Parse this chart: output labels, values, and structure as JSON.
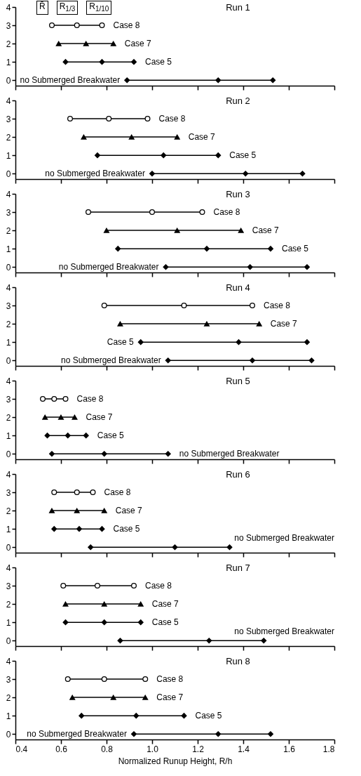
{
  "chart_data": [
    {
      "type": "line",
      "title": "Run 1",
      "annotations": [
        "R̄",
        "R$_{1/3}$",
        "R$_{1/10}$"
      ],
      "xlim": [
        0.4,
        1.8
      ],
      "xticks": [
        0.4,
        0.6,
        0.8,
        1.0,
        1.2,
        1.4,
        1.6,
        1.8
      ],
      "ylim": [
        -0.3,
        4
      ],
      "yticks": [
        0,
        1,
        2,
        3,
        4
      ],
      "tick_labels": "y",
      "series": [
        {
          "name": "Case 8",
          "marker": "circle",
          "x": [
            0.56,
            0.67,
            0.78
          ],
          "values": [
            3,
            3,
            3
          ]
        },
        {
          "name": "Case 7",
          "marker": "triangle",
          "x": [
            0.59,
            0.71,
            0.83
          ],
          "values": [
            2,
            2,
            2
          ]
        },
        {
          "name": "Case 5",
          "marker": "diamond",
          "x": [
            0.62,
            0.78,
            0.92
          ],
          "values": [
            1,
            1,
            1
          ]
        },
        {
          "name": "no Submerged Breakwater",
          "marker": "diamond",
          "x": [
            0.89,
            1.29,
            1.53
          ],
          "values": [
            0,
            0,
            0
          ]
        }
      ]
    },
    {
      "type": "line",
      "title": "Run 2",
      "xlim": [
        0.4,
        1.8
      ],
      "xticks": [
        0.4,
        0.6,
        0.8,
        1.0,
        1.2,
        1.4,
        1.6,
        1.8
      ],
      "ylim": [
        -0.3,
        4
      ],
      "yticks": [
        0,
        1,
        2,
        3,
        4
      ],
      "tick_labels": "y",
      "series": [
        {
          "name": "Case 8",
          "marker": "circle",
          "x": [
            0.64,
            0.81,
            0.98
          ],
          "values": [
            3,
            3,
            3
          ]
        },
        {
          "name": "Case 7",
          "marker": "triangle",
          "x": [
            0.7,
            0.91,
            1.11
          ],
          "values": [
            2,
            2,
            2
          ]
        },
        {
          "name": "Case 5",
          "marker": "diamond",
          "x": [
            0.76,
            1.05,
            1.29
          ],
          "values": [
            1,
            1,
            1
          ]
        },
        {
          "name": "no Submerged Breakwater",
          "marker": "diamond",
          "x": [
            1.0,
            1.41,
            1.66
          ],
          "values": [
            0,
            0,
            0
          ]
        }
      ]
    },
    {
      "type": "line",
      "title": "Run 3",
      "xlim": [
        0.4,
        1.8
      ],
      "xticks": [
        0.4,
        0.6,
        0.8,
        1.0,
        1.2,
        1.4,
        1.6,
        1.8
      ],
      "ylim": [
        -0.3,
        4
      ],
      "yticks": [
        0,
        1,
        2,
        3,
        4
      ],
      "tick_labels": "y",
      "series": [
        {
          "name": "Case 8",
          "marker": "circle",
          "x": [
            0.72,
            1.0,
            1.22
          ],
          "values": [
            3,
            3,
            3
          ]
        },
        {
          "name": "Case 7",
          "marker": "triangle",
          "x": [
            0.8,
            1.11,
            1.39
          ],
          "values": [
            2,
            2,
            2
          ]
        },
        {
          "name": "Case 5",
          "marker": "diamond",
          "x": [
            0.85,
            1.24,
            1.52
          ],
          "values": [
            1,
            1,
            1
          ]
        },
        {
          "name": "no Submerged Breakwater",
          "marker": "diamond",
          "x": [
            1.06,
            1.43,
            1.68
          ],
          "values": [
            0,
            0,
            0
          ]
        }
      ]
    },
    {
      "type": "line",
      "title": "Run 4",
      "xlim": [
        0.4,
        1.8
      ],
      "xticks": [
        0.4,
        0.6,
        0.8,
        1.0,
        1.2,
        1.4,
        1.6,
        1.8
      ],
      "ylim": [
        -0.3,
        4
      ],
      "yticks": [
        0,
        1,
        2,
        3,
        4
      ],
      "tick_labels": "y",
      "series": [
        {
          "name": "Case 8",
          "marker": "circle",
          "x": [
            0.79,
            1.14,
            1.44
          ],
          "values": [
            3,
            3,
            3
          ]
        },
        {
          "name": "Case 7",
          "marker": "triangle",
          "x": [
            0.86,
            1.24,
            1.47
          ],
          "values": [
            2,
            2,
            2
          ]
        },
        {
          "name": "Case 5",
          "marker": "diamond",
          "x": [
            0.95,
            1.38,
            1.68
          ],
          "values": [
            1,
            1,
            1
          ]
        },
        {
          "name": "no Submerged Breakwater",
          "marker": "diamond",
          "x": [
            1.07,
            1.44,
            1.7
          ],
          "values": [
            0,
            0,
            0
          ]
        }
      ]
    },
    {
      "type": "line",
      "title": "Run 5",
      "xlim": [
        0.4,
        1.8
      ],
      "xticks": [
        0.4,
        0.6,
        0.8,
        1.0,
        1.2,
        1.4,
        1.6,
        1.8
      ],
      "ylim": [
        -0.3,
        4
      ],
      "yticks": [
        0,
        1,
        2,
        3,
        4
      ],
      "tick_labels": "y",
      "series": [
        {
          "name": "Case 8",
          "marker": "circle",
          "x": [
            0.52,
            0.57,
            0.62
          ],
          "values": [
            3,
            3,
            3
          ]
        },
        {
          "name": "Case 7",
          "marker": "triangle",
          "x": [
            0.53,
            0.6,
            0.66
          ],
          "values": [
            2,
            2,
            2
          ]
        },
        {
          "name": "Case 5",
          "marker": "diamond",
          "x": [
            0.54,
            0.63,
            0.71
          ],
          "values": [
            1,
            1,
            1
          ]
        },
        {
          "name": "no Submerged Breakwater",
          "marker": "diamond",
          "x": [
            0.56,
            0.79,
            1.07
          ],
          "values": [
            0,
            0,
            0
          ]
        }
      ]
    },
    {
      "type": "line",
      "title": "Run 6",
      "xlim": [
        0.4,
        1.8
      ],
      "xticks": [
        0.4,
        0.6,
        0.8,
        1.0,
        1.2,
        1.4,
        1.6,
        1.8
      ],
      "ylim": [
        -0.3,
        4
      ],
      "yticks": [
        0,
        1,
        2,
        3,
        4
      ],
      "tick_labels": "y",
      "series": [
        {
          "name": "Case 8",
          "marker": "circle",
          "x": [
            0.57,
            0.67,
            0.74
          ],
          "values": [
            3,
            3,
            3
          ]
        },
        {
          "name": "Case 7",
          "marker": "triangle",
          "x": [
            0.56,
            0.67,
            0.79
          ],
          "values": [
            2,
            2,
            2
          ]
        },
        {
          "name": "Case 5",
          "marker": "diamond",
          "x": [
            0.57,
            0.68,
            0.78
          ],
          "values": [
            1,
            1,
            1
          ]
        },
        {
          "name": "no Submerged Breakwater",
          "marker": "diamond",
          "x": [
            0.73,
            1.1,
            1.34
          ],
          "values": [
            0,
            0,
            0
          ]
        }
      ]
    },
    {
      "type": "line",
      "title": "Run 7",
      "xlim": [
        0.4,
        1.8
      ],
      "xticks": [
        0.4,
        0.6,
        0.8,
        1.0,
        1.2,
        1.4,
        1.6,
        1.8
      ],
      "ylim": [
        -0.3,
        4
      ],
      "yticks": [
        0,
        1,
        2,
        3,
        4
      ],
      "tick_labels": "y",
      "series": [
        {
          "name": "Case 8",
          "marker": "circle",
          "x": [
            0.61,
            0.76,
            0.92
          ],
          "values": [
            3,
            3,
            3
          ]
        },
        {
          "name": "Case 7",
          "marker": "triangle",
          "x": [
            0.62,
            0.79,
            0.95
          ],
          "values": [
            2,
            2,
            2
          ]
        },
        {
          "name": "Case 5",
          "marker": "diamond",
          "x": [
            0.62,
            0.79,
            0.95
          ],
          "values": [
            1,
            1,
            1
          ]
        },
        {
          "name": "no Submerged Breakwater",
          "marker": "diamond",
          "x": [
            0.86,
            1.25,
            1.49
          ],
          "values": [
            0,
            0,
            0
          ]
        }
      ]
    },
    {
      "type": "line",
      "title": "Run 8",
      "xlabel": "Normalized Runup Height, R/h",
      "xlim": [
        0.4,
        1.8
      ],
      "xticks": [
        0.4,
        0.6,
        0.8,
        {
          "value": 1,
          "label": "1.0"
        },
        1.2,
        1.4,
        1.6,
        1.8
      ],
      "ylim": [
        -0.3,
        4
      ],
      "yticks": [
        0,
        1,
        2,
        3,
        4
      ],
      "series": [
        {
          "name": "Case 8",
          "marker": "circle",
          "x": [
            0.63,
            0.79,
            0.97
          ],
          "values": [
            3,
            3,
            3
          ]
        },
        {
          "name": "Case 7",
          "marker": "triangle",
          "x": [
            0.65,
            0.83,
            0.97
          ],
          "values": [
            2,
            2,
            2
          ]
        },
        {
          "name": "Case 5",
          "marker": "diamond",
          "x": [
            0.69,
            0.93,
            1.14
          ],
          "values": [
            1,
            1,
            1
          ]
        },
        {
          "name": "no Submerged Breakwater",
          "marker": "diamond",
          "x": [
            0.92,
            1.29,
            1.52
          ],
          "values": [
            0,
            0,
            0
          ]
        }
      ]
    }
  ]
}
